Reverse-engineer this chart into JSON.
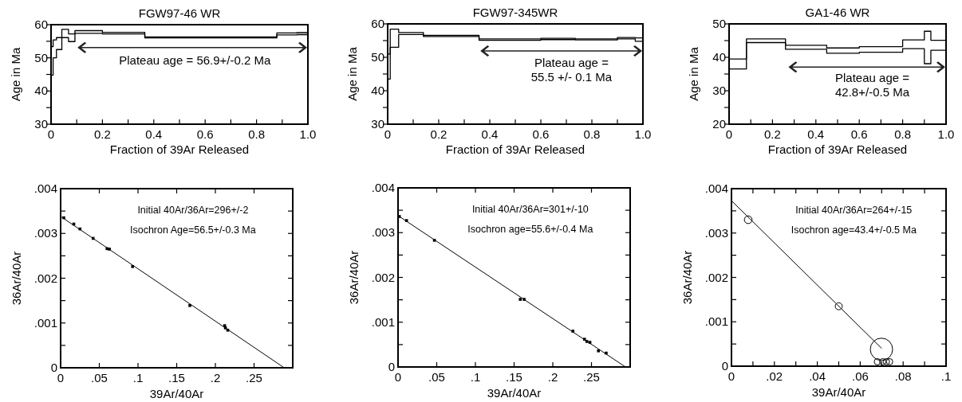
{
  "chart_data": [
    {
      "type": "step",
      "title": "FGW97-46 WR",
      "xlabel": "Fraction of 39Ar Released",
      "ylabel": "Age in Ma",
      "xlim": [
        0,
        1
      ],
      "ylim": [
        30,
        60
      ],
      "xticks": [
        0,
        {
          "value": 0.1,
          "label": null
        },
        0.2,
        {
          "value": 0.3,
          "label": null
        },
        0.4,
        {
          "value": 0.5,
          "label": null
        },
        0.6,
        {
          "value": 0.7,
          "label": null
        },
        0.8,
        {
          "value": 0.9,
          "label": null
        },
        {
          "value": 1,
          "label": "1.0"
        }
      ],
      "yticks": [
        30,
        {
          "value": 35,
          "label": null
        },
        40,
        {
          "value": 45,
          "label": null
        },
        50,
        {
          "value": 55,
          "label": null
        },
        60
      ],
      "series": [
        {
          "color": "#000000",
          "x": [
            0,
            0.008,
            0.021,
            0.042,
            0.068,
            0.093,
            0.2,
            0.365,
            0.879,
            0.957,
            1.0
          ],
          "values": [
            53.4,
            55.4,
            56.1,
            58.6,
            57.2,
            58.2,
            57.7,
            56.3,
            57.5,
            57.6,
            57.6
          ]
        },
        {
          "color": "#000000",
          "x": [
            0,
            0.008,
            0.021,
            0.042,
            0.068,
            0.093,
            0.2,
            0.365,
            0.879,
            0.957,
            1.0
          ],
          "values": [
            44.8,
            50.0,
            52.5,
            56.1,
            54.9,
            57.4,
            57.2,
            56.0,
            56.9,
            57.0,
            57.0
          ]
        }
      ],
      "annotations": [
        "Plateau age = 56.9+/-0.2 Ma"
      ]
    },
    {
      "type": "step",
      "title": "FGW97-345WR",
      "xlabel": "Fraction of 39Ar Released",
      "ylabel": "Age in Ma",
      "xlim": [
        0,
        1
      ],
      "ylim": [
        30,
        60
      ],
      "xticks": [
        0,
        {
          "value": 0.1,
          "label": null
        },
        0.2,
        {
          "value": 0.3,
          "label": null
        },
        0.4,
        {
          "value": 0.5,
          "label": null
        },
        0.6,
        {
          "value": 0.7,
          "label": null
        },
        0.8,
        {
          "value": 0.9,
          "label": null
        },
        {
          "value": 1,
          "label": "1.0"
        }
      ],
      "yticks": [
        30,
        {
          "value": 35,
          "label": null
        },
        40,
        {
          "value": 45,
          "label": null
        },
        50,
        {
          "value": 55,
          "label": null
        },
        60
      ],
      "series": [
        {
          "color": "#000000",
          "x": [
            0,
            0.01,
            0.043,
            0.14,
            0.358,
            0.6,
            0.735,
            0.9,
            0.97,
            1.0
          ],
          "values": [
            51.0,
            58.4,
            57.4,
            56.6,
            55.5,
            55.7,
            55.5,
            55.9,
            55.8,
            55.8
          ]
        },
        {
          "color": "#000000",
          "x": [
            0,
            0.01,
            0.043,
            0.14,
            0.358,
            0.6,
            0.735,
            0.9,
            0.97,
            1.0
          ],
          "values": [
            43.5,
            53.0,
            56.8,
            56.2,
            55.1,
            55.3,
            55.2,
            55.5,
            54.8,
            54.8
          ]
        }
      ],
      "annotations": [
        "Plateau age = 55.5 +/- 0.1 Ma"
      ]
    },
    {
      "type": "step",
      "title": "GA1-46 WR",
      "xlabel": "Fraction of 39Ar Released",
      "ylabel": "Age in Ma",
      "xlim": [
        0,
        1
      ],
      "ylim": [
        20,
        50
      ],
      "xticks": [
        0,
        {
          "value": 0.1,
          "label": null
        },
        0.2,
        {
          "value": 0.3,
          "label": null
        },
        0.4,
        {
          "value": 0.5,
          "label": null
        },
        0.6,
        {
          "value": 0.7,
          "label": null
        },
        0.8,
        {
          "value": 0.9,
          "label": null
        },
        {
          "value": 1,
          "label": "1.0"
        }
      ],
      "yticks": [
        20,
        {
          "value": 25,
          "label": null
        },
        30,
        {
          "value": 35,
          "label": null
        },
        40,
        {
          "value": 45,
          "label": null
        },
        50
      ],
      "series": [
        {
          "color": "#000000",
          "x": [
            0,
            0.08,
            0.26,
            0.45,
            0.6,
            0.8,
            0.9,
            0.93,
            1.0
          ],
          "values": [
            39.5,
            45.5,
            43.6,
            42.8,
            43.2,
            45.2,
            47.8,
            45.1,
            45.1
          ]
        },
        {
          "color": "#000000",
          "x": [
            0,
            0.08,
            0.26,
            0.45,
            0.6,
            0.8,
            0.9,
            0.93,
            1.0
          ],
          "values": [
            36.5,
            44.4,
            42.4,
            41.2,
            41.5,
            42.6,
            38.1,
            42.1,
            42.1
          ]
        }
      ],
      "annotations": [
        "Plateau age = 42.8+/-0.5 Ma"
      ]
    },
    {
      "type": "scatter",
      "xlabel": "39Ar/40Ar",
      "ylabel": "36Ar/40Ar",
      "xlim": [
        0,
        0.3
      ],
      "ylim": [
        0,
        0.004
      ],
      "xticks": [
        0,
        {
          "value": 0.05,
          "label": ".05"
        },
        {
          "value": 0.1,
          "label": ".1"
        },
        {
          "value": 0.15,
          "label": ".15"
        },
        {
          "value": 0.2,
          "label": ".2"
        },
        {
          "value": 0.25,
          "label": ".25"
        }
      ],
      "yticks": [
        0,
        {
          "value": 0.0005,
          "label": null
        },
        {
          "value": 0.001,
          "label": ".001"
        },
        {
          "value": 0.0015,
          "label": null
        },
        {
          "value": 0.002,
          "label": ".002"
        },
        {
          "value": 0.0025,
          "label": null
        },
        {
          "value": 0.003,
          "label": ".003"
        },
        {
          "value": 0.0035,
          "label": null
        },
        {
          "value": 0.004,
          "label": ".004"
        }
      ],
      "series": [
        {
          "color": "#000000",
          "marker": "square",
          "x": [
            0.0041,
            0.017,
            0.025,
            0.042,
            0.06,
            0.063,
            0.093,
            0.167,
            0.212,
            0.213,
            0.216
          ],
          "values": [
            0.00335,
            0.00321,
            0.0031,
            0.00289,
            0.00266,
            0.00265,
            0.00226,
            0.00139,
            0.00094,
            0.00089,
            0.00084
          ]
        },
        {
          "type": "line",
          "color": "#000000",
          "x": [
            0,
            0.289
          ],
          "values": [
            0.00338,
            0
          ]
        }
      ],
      "annotations": [
        "Initial 40Ar/36Ar=296+/-2",
        "Isochron Age=56.5+/-0.3 Ma"
      ]
    },
    {
      "type": "scatter",
      "xlabel": "39Ar/40Ar",
      "ylabel": "36Ar/40Ar",
      "xlim": [
        0,
        0.3
      ],
      "ylim": [
        0,
        0.004
      ],
      "xticks": [
        0,
        {
          "value": 0.05,
          "label": ".05"
        },
        {
          "value": 0.1,
          "label": ".1"
        },
        {
          "value": 0.15,
          "label": ".15"
        },
        {
          "value": 0.2,
          "label": ".2"
        },
        {
          "value": 0.25,
          "label": ".25"
        }
      ],
      "yticks": [
        0,
        {
          "value": 0.0005,
          "label": null
        },
        {
          "value": 0.001,
          "label": ".001"
        },
        {
          "value": 0.0015,
          "label": null
        },
        {
          "value": 0.002,
          "label": ".002"
        },
        {
          "value": 0.0025,
          "label": null
        },
        {
          "value": 0.003,
          "label": ".003"
        },
        {
          "value": 0.0035,
          "label": null
        },
        {
          "value": 0.004,
          "label": ".004"
        }
      ],
      "series": [
        {
          "color": "#000000",
          "marker": "square",
          "x": [
            0.0017,
            0.011,
            0.047,
            0.158,
            0.163,
            0.226,
            0.241,
            0.244,
            0.248,
            0.259,
            0.269
          ],
          "values": [
            0.00336,
            0.00327,
            0.00283,
            0.00151,
            0.00151,
            0.0008,
            0.00062,
            0.00057,
            0.00055,
            0.00036,
            0.00031
          ]
        },
        {
          "type": "line",
          "color": "#000000",
          "x": [
            0,
            0.294
          ],
          "values": [
            0.00338,
            0
          ]
        }
      ],
      "annotations": [
        "Initial 40Ar/36Ar=301+/-10",
        "Isochron age=55.6+/-0.4 Ma"
      ]
    },
    {
      "type": "scatter",
      "xlabel": "39Ar/40Ar",
      "ylabel": "36Ar/40Ar",
      "xlim": [
        0,
        0.1
      ],
      "ylim": [
        0,
        0.004
      ],
      "xticks": [
        0,
        {
          "value": 0.01,
          "label": null
        },
        {
          "value": 0.02,
          "label": ".02"
        },
        {
          "value": 0.03,
          "label": null
        },
        {
          "value": 0.04,
          "label": ".04"
        },
        {
          "value": 0.05,
          "label": null
        },
        {
          "value": 0.06,
          "label": ".06"
        },
        {
          "value": 0.07,
          "label": null
        },
        {
          "value": 0.08,
          "label": ".08"
        },
        {
          "value": 0.09,
          "label": null
        },
        {
          "value": 0.1,
          "label": ".1"
        }
      ],
      "yticks": [
        0,
        {
          "value": 0.0005,
          "label": null
        },
        {
          "value": 0.001,
          "label": ".001"
        },
        {
          "value": 0.0015,
          "label": null
        },
        {
          "value": 0.002,
          "label": ".002"
        },
        {
          "value": 0.0025,
          "label": null
        },
        {
          "value": 0.003,
          "label": ".003"
        },
        {
          "value": 0.0035,
          "label": null
        },
        {
          "value": 0.004,
          "label": ".004"
        }
      ],
      "series": [
        {
          "color": "#000000",
          "marker": "circle",
          "x": [
            0.0078,
            0.05,
            0.0699,
            0.068,
            0.0705,
            0.0722,
            0.0737
          ],
          "values": [
            0.0033,
            0.00135,
            0.00038,
            0.0001,
            0.0001,
            0.0001,
            0.0001
          ],
          "sizes": [
            0.12,
            0.1,
            1,
            0.08,
            0.08,
            0.08,
            0.08
          ]
        },
        {
          "type": "line",
          "color": "#000000",
          "x": [
            0,
            0.07
          ],
          "values": [
            0.00373,
            0.0004
          ]
        }
      ],
      "annotations": [
        "Initial 40Ar/36Ar=264+/-15",
        "Isochron age=43.4+/-0.5 Ma"
      ]
    }
  ]
}
